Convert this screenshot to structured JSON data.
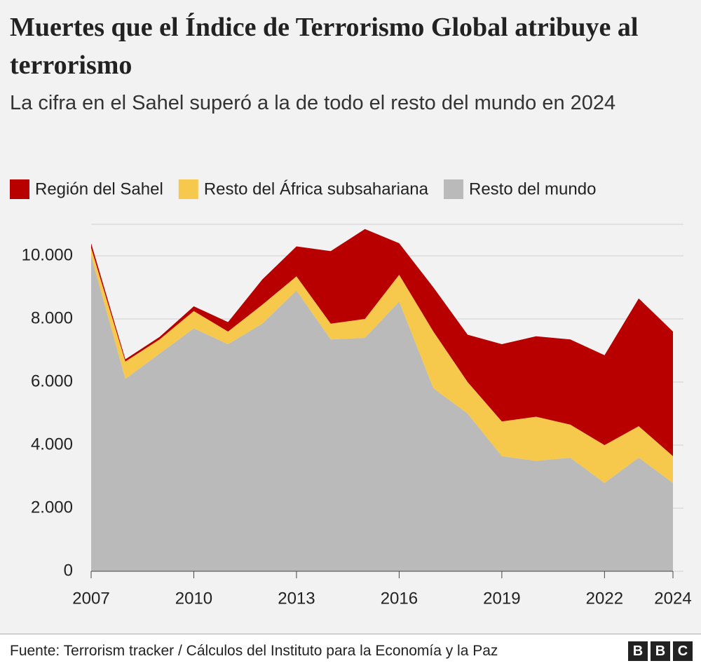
{
  "chart_data": {
    "type": "stacked-area",
    "title": "Muertes que el Índice de Terrorismo Global atribuye al terrorismo",
    "subtitle": "La cifra en el Sahel superó a la de todo el resto del mundo en 2024",
    "x": [
      2007,
      2008,
      2009,
      2010,
      2011,
      2012,
      2013,
      2014,
      2015,
      2016,
      2017,
      2018,
      2019,
      2020,
      2021,
      2022,
      2023,
      2024
    ],
    "series": [
      {
        "name": "Región del Sahel",
        "color": "#b80000",
        "values": [
          150,
          70,
          80,
          150,
          300,
          800,
          950,
          2300,
          2850,
          1000,
          1400,
          1500,
          2450,
          2550,
          2700,
          2850,
          4050,
          3950
        ]
      },
      {
        "name": "Resto del África subsahariana",
        "color": "#f6c84c",
        "values": [
          250,
          550,
          450,
          550,
          400,
          600,
          450,
          500,
          600,
          850,
          1800,
          1000,
          1100,
          1400,
          1050,
          1200,
          1000,
          850
        ]
      },
      {
        "name": "Resto del mundo",
        "color": "#bababa",
        "values": [
          10000,
          6100,
          6900,
          7700,
          7200,
          7850,
          8900,
          7350,
          7400,
          8550,
          5800,
          5000,
          3650,
          3500,
          3600,
          2800,
          3600,
          2800
        ]
      }
    ],
    "xlim": [
      2007,
      2024
    ],
    "xticks": [
      2007,
      2010,
      2013,
      2016,
      2019,
      2022,
      2024
    ],
    "ylim": [
      0,
      11000
    ],
    "yticks": [
      0,
      {
        "value": 2000,
        "label": "2.000"
      },
      {
        "value": 4000,
        "label": "4.000"
      },
      {
        "value": 6000,
        "label": "6.000"
      },
      {
        "value": 8000,
        "label": "8.000"
      },
      {
        "value": 10000,
        "label": "10.000"
      }
    ],
    "grid": true,
    "source": "Fuente: Terrorism tracker / Cálculos del Instituto para la Economía y la Paz",
    "logo": [
      "B",
      "B",
      "C"
    ]
  }
}
